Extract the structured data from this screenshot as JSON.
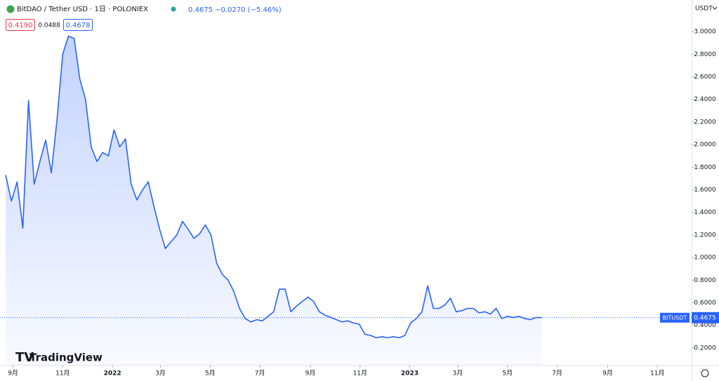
{
  "header": {
    "title": "BitDAO / Tether USD · 1日 · POLONIEX",
    "quote": "0.4675 −0.0270 (−5.46%)",
    "bid": "0.4190",
    "spread": "0.0488",
    "ask": "0.4678",
    "currency": "USDT",
    "symbol": "BITUSDT",
    "brand": "TradingView"
  },
  "chart_data": {
    "type": "area",
    "x": [
      "2021-08-23",
      "2021-08-30",
      "2021-09-06",
      "2021-09-13",
      "2021-09-20",
      "2021-09-27",
      "2021-10-04",
      "2021-10-11",
      "2021-10-18",
      "2021-10-25",
      "2021-11-01",
      "2021-11-08",
      "2021-11-15",
      "2021-11-22",
      "2021-11-29",
      "2021-12-06",
      "2021-12-13",
      "2021-12-20",
      "2021-12-27",
      "2022-01-03",
      "2022-01-10",
      "2022-01-17",
      "2022-01-24",
      "2022-01-31",
      "2022-02-07",
      "2022-02-14",
      "2022-02-21",
      "2022-02-28",
      "2022-03-07",
      "2022-03-14",
      "2022-03-21",
      "2022-03-28",
      "2022-04-04",
      "2022-04-11",
      "2022-04-18",
      "2022-04-25",
      "2022-05-02",
      "2022-05-09",
      "2022-05-16",
      "2022-05-23",
      "2022-05-30",
      "2022-06-06",
      "2022-06-13",
      "2022-06-20",
      "2022-06-27",
      "2022-07-04",
      "2022-07-11",
      "2022-07-18",
      "2022-07-25",
      "2022-08-01",
      "2022-08-08",
      "2022-08-15",
      "2022-08-22",
      "2022-08-29",
      "2022-09-05",
      "2022-09-12",
      "2022-09-19",
      "2022-09-26",
      "2022-10-03",
      "2022-10-10",
      "2022-10-17",
      "2022-10-24",
      "2022-10-31",
      "2022-11-07",
      "2022-11-14",
      "2022-11-21",
      "2022-11-28",
      "2022-12-05",
      "2022-12-12",
      "2022-12-19",
      "2022-12-26",
      "2023-01-02",
      "2023-01-09",
      "2023-01-16",
      "2023-01-23",
      "2023-01-30",
      "2023-02-06",
      "2023-02-13",
      "2023-02-20",
      "2023-02-27",
      "2023-03-06",
      "2023-03-13",
      "2023-03-20",
      "2023-03-27",
      "2023-04-03",
      "2023-04-10",
      "2023-04-17",
      "2023-04-24",
      "2023-05-01",
      "2023-05-08",
      "2023-05-15",
      "2023-05-22",
      "2023-05-29",
      "2023-06-05",
      "2023-06-12"
    ],
    "series": [
      {
        "name": "BITUSDT",
        "color": "#2962ff",
        "values": [
          1.73,
          1.5,
          1.67,
          1.26,
          2.39,
          1.65,
          1.85,
          2.04,
          1.75,
          2.22,
          2.8,
          2.96,
          2.94,
          2.58,
          2.4,
          1.98,
          1.85,
          1.93,
          1.9,
          2.13,
          1.98,
          2.05,
          1.65,
          1.51,
          1.6,
          1.67,
          1.45,
          1.25,
          1.08,
          1.14,
          1.2,
          1.32,
          1.25,
          1.17,
          1.21,
          1.29,
          1.2,
          0.95,
          0.85,
          0.8,
          0.7,
          0.55,
          0.46,
          0.43,
          0.45,
          0.44,
          0.48,
          0.52,
          0.72,
          0.72,
          0.52,
          0.57,
          0.61,
          0.65,
          0.61,
          0.52,
          0.49,
          0.47,
          0.45,
          0.43,
          0.44,
          0.42,
          0.41,
          0.32,
          0.31,
          0.29,
          0.3,
          0.29,
          0.3,
          0.29,
          0.31,
          0.42,
          0.46,
          0.52,
          0.75,
          0.55,
          0.55,
          0.58,
          0.64,
          0.52,
          0.53,
          0.55,
          0.55,
          0.51,
          0.52,
          0.5,
          0.55,
          0.46,
          0.48,
          0.47,
          0.48,
          0.46,
          0.45,
          0.47,
          0.4675
        ]
      }
    ],
    "xlim": [
      "2021-08-16",
      "2023-12-13"
    ],
    "xticks": [
      {
        "value": "2021-09-01",
        "label": "9月"
      },
      {
        "value": "2021-11-01",
        "label": "11月"
      },
      {
        "value": "2022-01-01",
        "label": "2022"
      },
      {
        "value": "2022-03-01",
        "label": "3月"
      },
      {
        "value": "2022-05-01",
        "label": "5月"
      },
      {
        "value": "2022-07-01",
        "label": "7月"
      },
      {
        "value": "2022-09-01",
        "label": "9月"
      },
      {
        "value": "2022-11-01",
        "label": "11月"
      },
      {
        "value": "2023-01-01",
        "label": "2023"
      },
      {
        "value": "2023-03-01",
        "label": "3月"
      },
      {
        "value": "2023-05-01",
        "label": "5月"
      },
      {
        "value": "2023-07-01",
        "label": "7月"
      },
      {
        "value": "2023-09-01",
        "label": "9月"
      },
      {
        "value": "2023-11-01",
        "label": "11月"
      }
    ],
    "ylim": [
      0.05,
      3.28
    ],
    "yticks": [
      {
        "value": 0.2,
        "label": "0.2000"
      },
      {
        "value": 0.4,
        "label": "0.4000"
      },
      {
        "value": 0.6,
        "label": "0.6000"
      },
      {
        "value": 0.8,
        "label": "0.8000"
      },
      {
        "value": 1,
        "label": "1.0000"
      },
      {
        "value": 1.2,
        "label": "1.2000"
      },
      {
        "value": 1.4,
        "label": "1.4000"
      },
      {
        "value": 1.6,
        "label": "1.6000"
      },
      {
        "value": 1.8,
        "label": "1.8000"
      },
      {
        "value": 2,
        "label": "2.0000"
      },
      {
        "value": 2.2,
        "label": "2.2000"
      },
      {
        "value": 2.4,
        "label": "2.4000"
      },
      {
        "value": 2.6,
        "label": "2.6000"
      },
      {
        "value": 2.8,
        "label": "2.8000"
      },
      {
        "value": 3,
        "label": "3.0000"
      }
    ],
    "grid": false
  }
}
